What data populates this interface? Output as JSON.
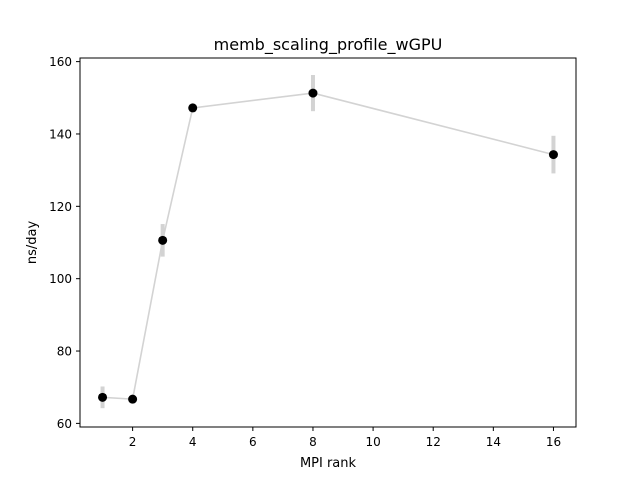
{
  "chart_data": {
    "type": "line",
    "title": "memb_scaling_profile_wGPU",
    "xlabel": "MPI rank",
    "ylabel": "ns/day",
    "xlim": [
      0.25,
      16.75
    ],
    "ylim": [
      59,
      161
    ],
    "xticks": [
      2,
      4,
      6,
      8,
      10,
      12,
      14,
      16
    ],
    "yticks": [
      60,
      80,
      100,
      120,
      140,
      160
    ],
    "grid": false,
    "legend": "none",
    "colors": {
      "line": "#d3d3d3",
      "errorbar": "#d3d3d3",
      "marker": "#000000"
    },
    "series": [
      {
        "x": [
          1,
          2,
          3,
          4,
          8,
          16
        ],
        "y": [
          67.2,
          66.7,
          110.6,
          147.2,
          151.3,
          134.3
        ],
        "yerr": [
          3.0,
          0.6,
          4.5,
          0.5,
          5.0,
          5.2
        ]
      }
    ]
  }
}
